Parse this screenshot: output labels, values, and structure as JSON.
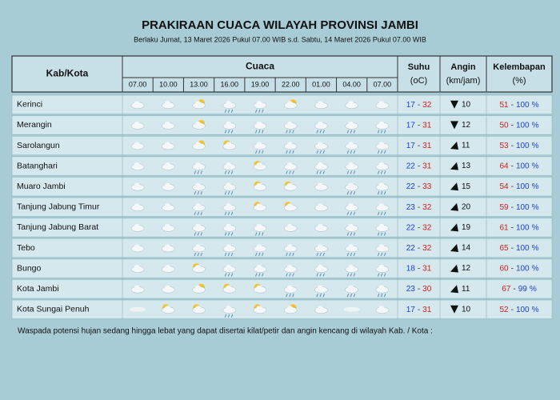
{
  "header": {
    "title": "PRAKIRAAN CUACA WILAYAH PROVINSI JAMBI",
    "subtitle": "Berlaku Jumat, 13 Maret 2026 Pukul 07.00 WIB s.d. Sabtu, 14 Maret 2026 Pukul 07.00 WIB"
  },
  "table": {
    "columns": {
      "region": "Kab/Kota",
      "weather": "Cuaca",
      "temp": [
        "Suhu",
        "(oC)"
      ],
      "wind": [
        "Angin",
        "(km/jam)"
      ],
      "humidity": [
        "Kelembapan",
        "(%)"
      ]
    },
    "times": [
      "07.00",
      "10.00",
      "13.00",
      "16.00",
      "19.00",
      "22.00",
      "01.00",
      "04.00",
      "07.00"
    ],
    "separator": "-",
    "humidity_unit": "%",
    "rows": [
      {
        "name": "Kerinci",
        "temp_min": 17,
        "temp_max": 32,
        "wind": 10,
        "hum_min": 51,
        "hum_max": 100
      },
      {
        "name": "Merangin",
        "temp_min": 17,
        "temp_max": 31,
        "wind": 12,
        "hum_min": 50,
        "hum_max": 100
      },
      {
        "name": "Sarolangun",
        "temp_min": 17,
        "temp_max": 31,
        "wind": 11,
        "hum_min": 53,
        "hum_max": 100
      },
      {
        "name": "Batanghari",
        "temp_min": 22,
        "temp_max": 31,
        "wind": 13,
        "hum_min": 64,
        "hum_max": 100
      },
      {
        "name": "Muaro Jambi",
        "temp_min": 22,
        "temp_max": 33,
        "wind": 15,
        "hum_min": 54,
        "hum_max": 100
      },
      {
        "name": "Tanjung Jabung Timur",
        "temp_min": 23,
        "temp_max": 32,
        "wind": 20,
        "hum_min": 59,
        "hum_max": 100
      },
      {
        "name": "Tanjung Jabung Barat",
        "temp_min": 22,
        "temp_max": 32,
        "wind": 19,
        "hum_min": 61,
        "hum_max": 100
      },
      {
        "name": "Tebo",
        "temp_min": 22,
        "temp_max": 32,
        "wind": 14,
        "hum_min": 65,
        "hum_max": 100
      },
      {
        "name": "Bungo",
        "temp_min": 18,
        "temp_max": 31,
        "wind": 12,
        "hum_min": 60,
        "hum_max": 100
      },
      {
        "name": "Kota Jambi",
        "temp_min": 23,
        "temp_max": 30,
        "wind": 11,
        "hum_min": 67,
        "hum_max": 99
      },
      {
        "name": "Kota Sungai Penuh",
        "temp_min": 17,
        "temp_max": 31,
        "wind": 10,
        "hum_min": 52,
        "hum_max": 100
      }
    ]
  },
  "footer": {
    "note": "Waspada potensi hujan sedang hingga lebat yang dapat disertai kilat/petir dan angin kencang di wilayah Kab. / Kota :"
  }
}
